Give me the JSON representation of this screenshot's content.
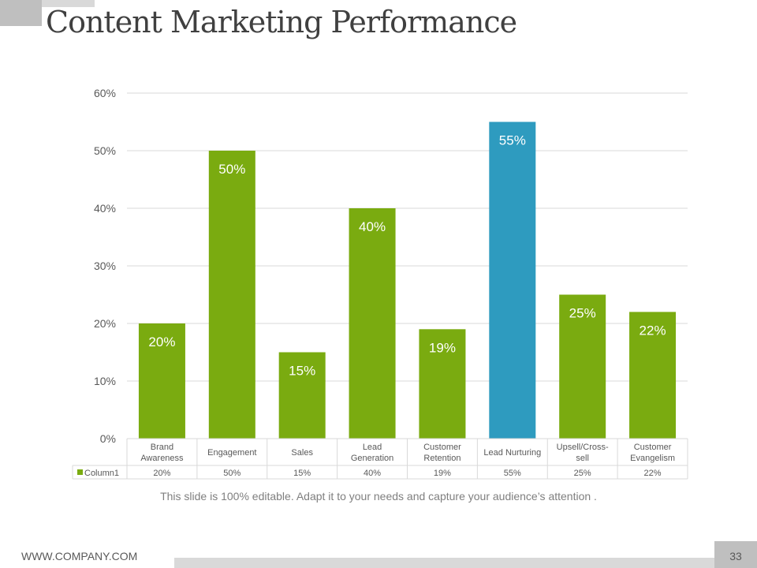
{
  "title": "Content Marketing Performance",
  "caption": "This slide is 100% editable. Adapt it to your needs and capture your audience’s attention .",
  "footer": {
    "url": "WWW.COMPANY.COM",
    "page": "33"
  },
  "chart_data": {
    "type": "bar",
    "title": "",
    "categories": [
      [
        "Brand",
        "Awareness"
      ],
      [
        "Engagement"
      ],
      [
        "Sales"
      ],
      [
        "Lead",
        "Generation"
      ],
      [
        "Customer",
        "Retention"
      ],
      [
        "Lead Nurturing"
      ],
      [
        "Upsell/Cross-",
        "sell"
      ],
      [
        "Customer",
        "Evangelism"
      ]
    ],
    "series": [
      {
        "name": "Column1",
        "values": [
          20,
          50,
          15,
          40,
          19,
          55,
          25,
          22
        ]
      }
    ],
    "value_labels": [
      "20%",
      "50%",
      "15%",
      "40%",
      "19%",
      "55%",
      "25%",
      "22%"
    ],
    "highlight_index": 5,
    "colors": {
      "bar": "#7aab10",
      "highlight": "#2e9bbf",
      "grid": "#d9d9d9",
      "axis_text": "#595959"
    },
    "ylim": [
      0,
      60
    ],
    "yticks": [
      0,
      10,
      20,
      30,
      40,
      50,
      60
    ],
    "ytick_labels": [
      "0%",
      "10%",
      "20%",
      "30%",
      "40%",
      "50%",
      "60%"
    ],
    "grid": true,
    "legend": "data-table"
  }
}
